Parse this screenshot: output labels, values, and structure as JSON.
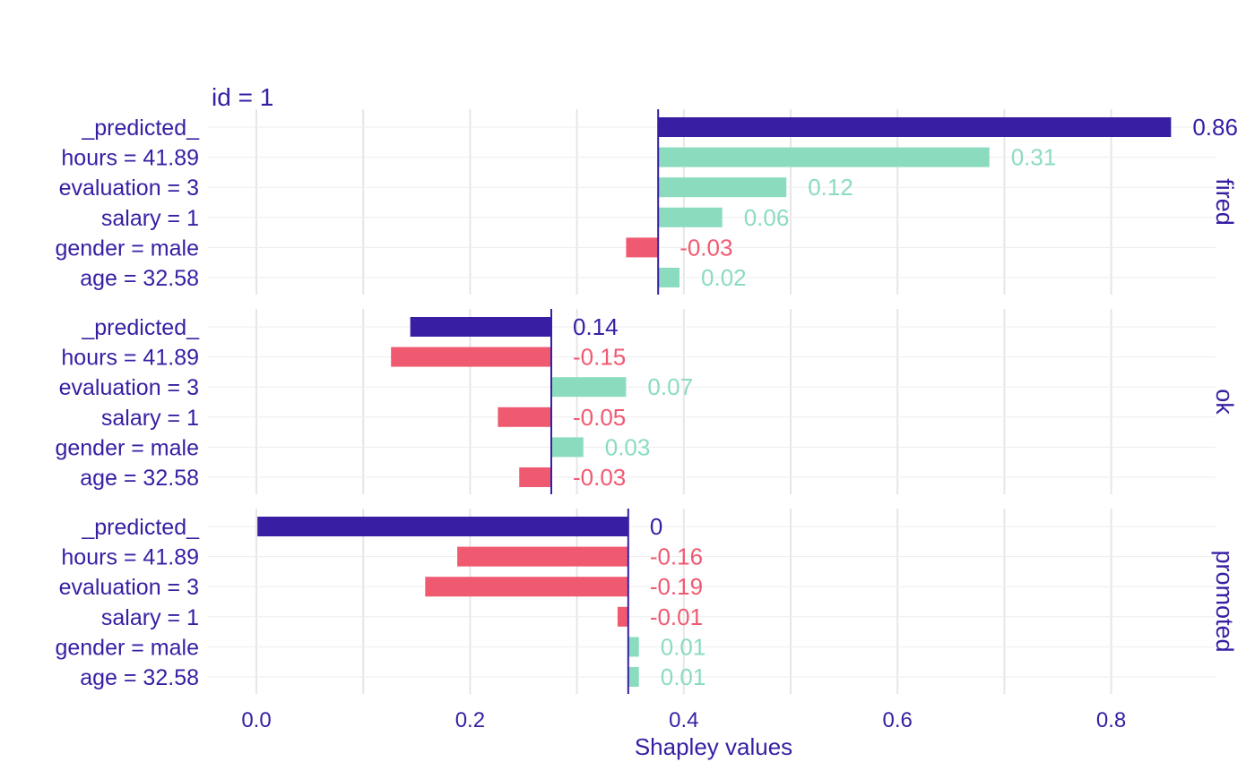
{
  "chart_data": {
    "type": "bar",
    "subtitle": "id = 1",
    "xlabel": "Shapley values",
    "xlim": [
      -0.04,
      0.9
    ],
    "x_ticks": [
      "0.0",
      "0.2",
      "0.4",
      "0.6",
      "0.8"
    ],
    "x_tick_values": [
      0.0,
      0.2,
      0.4,
      0.6,
      0.8
    ],
    "grid": true,
    "colors": {
      "predicted": "#371ea3",
      "positive": "#8bdcbe",
      "negative": "#f05a71",
      "text": "#371ea3"
    },
    "panels": [
      {
        "label": "fired",
        "baseline": 0.376,
        "bars": [
          {
            "variable": "_predicted_",
            "contribution": 0.48,
            "label": "0.86",
            "kind": "predicted"
          },
          {
            "variable": "hours = 41.89",
            "contribution": 0.31,
            "label": "0.31",
            "kind": "positive"
          },
          {
            "variable": "evaluation = 3",
            "contribution": 0.12,
            "label": "0.12",
            "kind": "positive"
          },
          {
            "variable": "salary = 1",
            "contribution": 0.06,
            "label": "0.06",
            "kind": "positive"
          },
          {
            "variable": "gender = male",
            "contribution": -0.03,
            "label": "-0.03",
            "kind": "negative"
          },
          {
            "variable": "age = 32.58",
            "contribution": 0.02,
            "label": "0.02",
            "kind": "positive"
          }
        ]
      },
      {
        "label": "ok",
        "baseline": 0.276,
        "bars": [
          {
            "variable": "_predicted_",
            "contribution": -0.132,
            "label": "0.14",
            "kind": "predicted"
          },
          {
            "variable": "hours = 41.89",
            "contribution": -0.15,
            "label": "-0.15",
            "kind": "negative"
          },
          {
            "variable": "evaluation = 3",
            "contribution": 0.07,
            "label": "0.07",
            "kind": "positive"
          },
          {
            "variable": "salary = 1",
            "contribution": -0.05,
            "label": "-0.05",
            "kind": "negative"
          },
          {
            "variable": "gender = male",
            "contribution": 0.03,
            "label": "0.03",
            "kind": "positive"
          },
          {
            "variable": "age = 32.58",
            "contribution": -0.03,
            "label": "-0.03",
            "kind": "negative"
          }
        ]
      },
      {
        "label": "promoted",
        "baseline": 0.348,
        "bars": [
          {
            "variable": "_predicted_",
            "contribution": -0.347,
            "label": "0",
            "kind": "predicted"
          },
          {
            "variable": "hours = 41.89",
            "contribution": -0.16,
            "label": "-0.16",
            "kind": "negative"
          },
          {
            "variable": "evaluation = 3",
            "contribution": -0.19,
            "label": "-0.19",
            "kind": "negative"
          },
          {
            "variable": "salary = 1",
            "contribution": -0.01,
            "label": "-0.01",
            "kind": "negative"
          },
          {
            "variable": "gender = male",
            "contribution": 0.01,
            "label": "0.01",
            "kind": "positive"
          },
          {
            "variable": "age = 32.58",
            "contribution": 0.01,
            "label": "0.01",
            "kind": "positive"
          }
        ]
      }
    ]
  }
}
